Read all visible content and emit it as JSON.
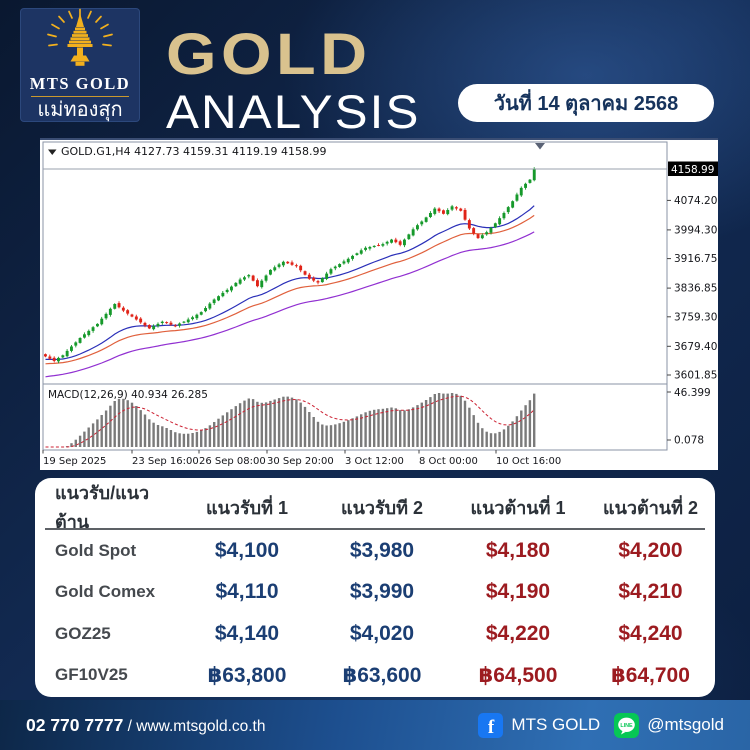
{
  "header": {
    "logo": {
      "name": "MTS GOLD",
      "thai": "แม่ทองสุก"
    },
    "title_top": "GOLD",
    "title_bottom": "ANALYSIS",
    "date": "วันที่ 14 ตุลาคม 2568"
  },
  "chart_data": {
    "type": "candlestick",
    "title": "GOLD.G1,H4  4127.73 4159.31 4119.19 4158.99",
    "symbol": "GOLD.G1,H4",
    "ohlc_display": {
      "open": "4127.73",
      "high": "4159.31",
      "low": "4119.19",
      "close": "4158.99"
    },
    "current_price": "4158.99",
    "y_ticks": [
      "4074.20",
      "3994.30",
      "3916.75",
      "3836.85",
      "3759.30",
      "3679.40",
      "3601.85"
    ],
    "x_ticks": [
      "19 Sep 2025",
      "23 Sep 16:00",
      "26 Sep 08:00",
      "30 Sep 20:00",
      "3 Oct 12:00",
      "8 Oct 00:00",
      "10 Oct 16:00"
    ],
    "indicator_label": "MACD(12,26,9) 40.934 26.285",
    "macd_axis_max": "46.399",
    "macd_axis_min": "0.078",
    "legend_position": "none",
    "grid": false,
    "ylim": [
      3578,
      4185
    ],
    "closes": [
      3652,
      3646,
      3640,
      3648,
      3655,
      3667,
      3679,
      3690,
      3702,
      3712,
      3721,
      3731,
      3740,
      3754,
      3767,
      3781,
      3794,
      3785,
      3776,
      3768,
      3760,
      3752,
      3744,
      3736,
      3728,
      3734,
      3740,
      3746,
      3742,
      3738,
      3735,
      3741,
      3746,
      3752,
      3758,
      3765,
      3772,
      3783,
      3795,
      3806,
      3815,
      3824,
      3832,
      3841,
      3851,
      3860,
      3866,
      3872,
      3857,
      3842,
      3857,
      3871,
      3886,
      3893,
      3901,
      3908,
      3904,
      3900,
      3896,
      3885,
      3873,
      3862,
      3857,
      3852,
      3864,
      3876,
      3888,
      3895,
      3902,
      3909,
      3916,
      3924,
      3931,
      3939,
      3946,
      3948,
      3951,
      3953,
      3956,
      3962,
      3968,
      3961,
      3954,
      3968,
      3982,
      3996,
      4007,
      4017,
      4028,
      4040,
      4052,
      4045,
      4038,
      4048,
      4058,
      4052,
      4046,
      4022,
      3998,
      3985,
      3972,
      3980,
      3988,
      4000,
      4012,
      4026,
      4040,
      4056,
      4072,
      4090,
      4108,
      4119,
      4130,
      4158.99
    ]
  },
  "table": {
    "headers": [
      "แนวรับ/แนวต้าน",
      "แนวรับที่ 1",
      "แนวรับที 2",
      "แนวต้านที่ 1",
      "แนวต้านที่ 2"
    ],
    "rows": [
      {
        "label": "Gold Spot",
        "support1": "$4,100",
        "support2": "$3,980",
        "resistance1": "$4,180",
        "resistance2": "$4,200"
      },
      {
        "label": "Gold Comex",
        "support1": "$4,110",
        "support2": "$3,990",
        "resistance1": "$4,190",
        "resistance2": "$4,210"
      },
      {
        "label": "GOZ25",
        "support1": "$4,140",
        "support2": "$4,020",
        "resistance1": "$4,220",
        "resistance2": "$4,240"
      },
      {
        "label": "GF10V25",
        "support1": "฿63,800",
        "support2": "฿63,600",
        "resistance1": "฿64,500",
        "resistance2": "฿64,700"
      }
    ]
  },
  "footer": {
    "phone": "02 770 7777",
    "divider": "/",
    "website": "www.mtsgold.co.th",
    "facebook": "MTS GOLD",
    "line": "@mtsgold"
  },
  "colors": {
    "gold": "#d9c28e",
    "navy": "#16335c",
    "support": "#1b3e73",
    "resist": "#9c1b20",
    "candle_up": "#16992b",
    "candle_down": "#e02318",
    "ma_fast": "#2a2fb8",
    "ma_mid": "#e0603c",
    "ma_slow": "#9130d1",
    "macd_bar": "#7a7a7a",
    "macd_signal": "#cc2233",
    "facebook": "#1877f2",
    "line_green": "#06c755"
  }
}
